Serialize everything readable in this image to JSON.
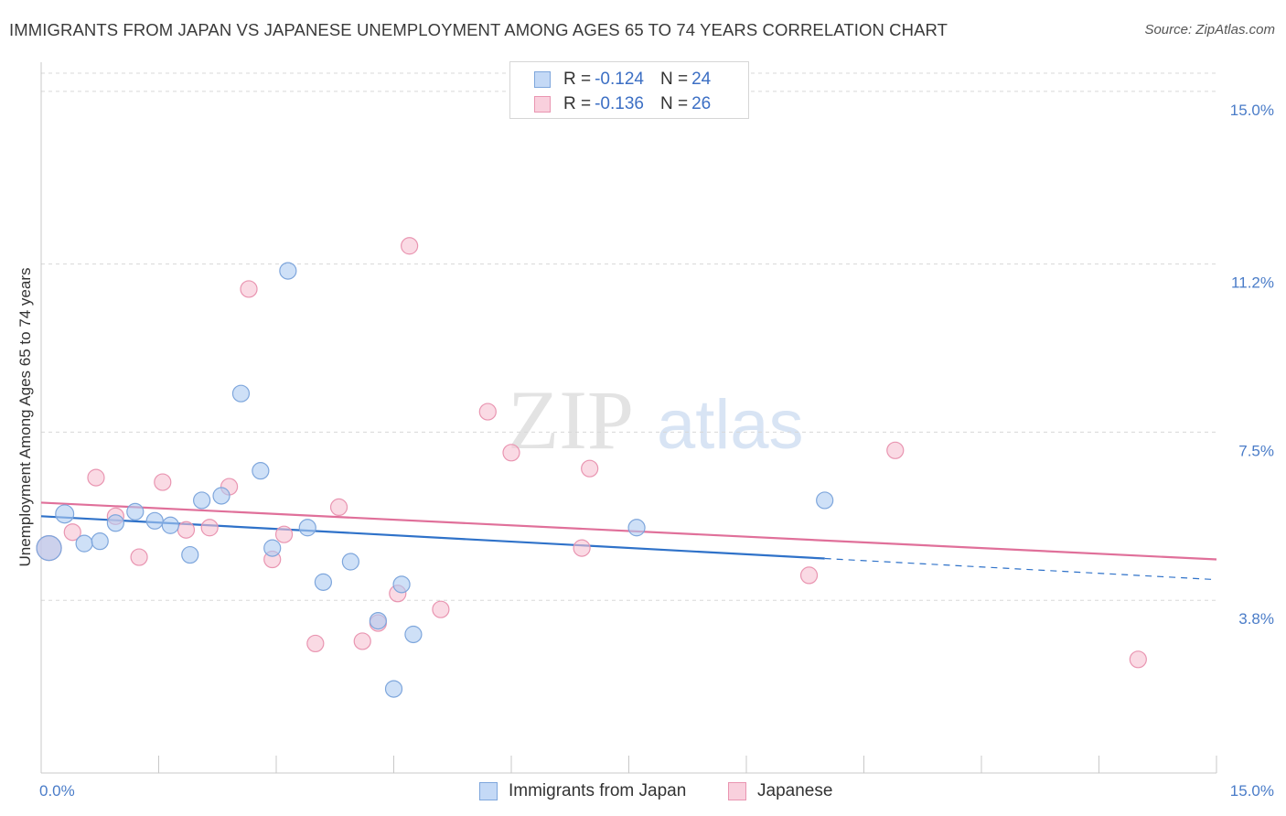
{
  "title": "IMMIGRANTS FROM JAPAN VS JAPANESE UNEMPLOYMENT AMONG AGES 65 TO 74 YEARS CORRELATION CHART",
  "source": "Source: ZipAtlas.com",
  "watermark": {
    "zip": "ZIP",
    "atlas": "atlas"
  },
  "colors": {
    "blue_fill": "#aecbf2",
    "blue_stroke": "#7ea6dc",
    "blue_line": "#2f72c9",
    "pink_fill": "#f7c1d2",
    "pink_stroke": "#e995b1",
    "pink_line": "#e0709a",
    "tick_text": "#4a7cc8",
    "grid": "#d8d8d8"
  },
  "legend": {
    "rows": [
      {
        "r_label": "R = ",
        "r_value": "-0.124",
        "n_label": "N = ",
        "n_value": "24"
      },
      {
        "r_label": "R = ",
        "r_value": "-0.136",
        "n_label": "N = ",
        "n_value": "26"
      }
    ]
  },
  "chart_data": {
    "type": "scatter",
    "title": "IMMIGRANTS FROM JAPAN VS JAPANESE UNEMPLOYMENT AMONG AGES 65 TO 74 YEARS CORRELATION CHART",
    "xlabel": "",
    "ylabel": "Unemployment Among Ages 65 to 74 years",
    "xlim": [
      0,
      15
    ],
    "ylim": [
      0,
      15.4
    ],
    "x_tick_labels": [
      {
        "value": 0,
        "label": "0.0%"
      },
      {
        "value": 15,
        "label": "15.0%"
      }
    ],
    "x_minor_ticks": [
      1.5,
      3.0,
      4.5,
      6.0,
      7.5,
      9.0,
      10.5,
      12.0,
      13.5,
      15.0
    ],
    "y_ticks": [
      {
        "value": 3.8,
        "label": "3.8%"
      },
      {
        "value": 7.5,
        "label": "7.5%"
      },
      {
        "value": 11.2,
        "label": "11.2%"
      },
      {
        "value": 15.0,
        "label": "15.0%"
      }
    ],
    "grid": true,
    "series": [
      {
        "name": "Immigrants from Japan",
        "color": "blue",
        "r": -0.124,
        "n": 24,
        "trend": {
          "x0": 0.0,
          "y0": 5.65,
          "x1": 10.0,
          "y1": 4.72,
          "dash_to": 15.0
        },
        "points": [
          {
            "x": 0.1,
            "y": 4.95,
            "s": 1.5
          },
          {
            "x": 0.3,
            "y": 5.7,
            "s": 1.1
          },
          {
            "x": 0.55,
            "y": 5.05,
            "s": 1.0
          },
          {
            "x": 0.75,
            "y": 5.1,
            "s": 1.0
          },
          {
            "x": 0.95,
            "y": 5.5,
            "s": 1.0
          },
          {
            "x": 1.2,
            "y": 5.75,
            "s": 1.0
          },
          {
            "x": 1.45,
            "y": 5.55,
            "s": 1.0
          },
          {
            "x": 1.65,
            "y": 5.45,
            "s": 1.0
          },
          {
            "x": 1.9,
            "y": 4.8,
            "s": 1.0
          },
          {
            "x": 2.05,
            "y": 6.0,
            "s": 1.0
          },
          {
            "x": 2.3,
            "y": 6.1,
            "s": 1.0
          },
          {
            "x": 2.55,
            "y": 8.35,
            "s": 1.0
          },
          {
            "x": 2.8,
            "y": 6.65,
            "s": 1.0
          },
          {
            "x": 2.95,
            "y": 4.95,
            "s": 1.0
          },
          {
            "x": 3.15,
            "y": 11.05,
            "s": 1.0
          },
          {
            "x": 3.4,
            "y": 5.4,
            "s": 1.0
          },
          {
            "x": 3.6,
            "y": 4.2,
            "s": 1.0
          },
          {
            "x": 3.95,
            "y": 4.65,
            "s": 1.0
          },
          {
            "x": 4.3,
            "y": 3.35,
            "s": 1.0
          },
          {
            "x": 4.5,
            "y": 1.85,
            "s": 1.0
          },
          {
            "x": 4.6,
            "y": 4.15,
            "s": 1.0
          },
          {
            "x": 4.75,
            "y": 3.05,
            "s": 1.0
          },
          {
            "x": 7.6,
            "y": 5.4,
            "s": 1.0
          },
          {
            "x": 10.0,
            "y": 6.0,
            "s": 1.0
          }
        ]
      },
      {
        "name": "Japanese",
        "color": "pink",
        "r": -0.136,
        "n": 26,
        "trend": {
          "x0": 0.0,
          "y0": 5.95,
          "x1": 15.0,
          "y1": 4.7,
          "dash_to": null
        },
        "points": [
          {
            "x": 0.1,
            "y": 4.95,
            "s": 1.5
          },
          {
            "x": 0.4,
            "y": 5.3,
            "s": 1.0
          },
          {
            "x": 0.7,
            "y": 6.5,
            "s": 1.0
          },
          {
            "x": 0.95,
            "y": 5.65,
            "s": 1.0
          },
          {
            "x": 1.25,
            "y": 4.75,
            "s": 1.0
          },
          {
            "x": 1.55,
            "y": 6.4,
            "s": 1.0
          },
          {
            "x": 1.85,
            "y": 5.35,
            "s": 1.0
          },
          {
            "x": 2.15,
            "y": 5.4,
            "s": 1.0
          },
          {
            "x": 2.4,
            "y": 6.3,
            "s": 1.0
          },
          {
            "x": 2.65,
            "y": 10.65,
            "s": 1.0
          },
          {
            "x": 2.95,
            "y": 4.7,
            "s": 1.0
          },
          {
            "x": 3.1,
            "y": 5.25,
            "s": 1.0
          },
          {
            "x": 3.5,
            "y": 2.85,
            "s": 1.0
          },
          {
            "x": 3.8,
            "y": 5.85,
            "s": 1.0
          },
          {
            "x": 4.1,
            "y": 2.9,
            "s": 1.0
          },
          {
            "x": 4.3,
            "y": 3.3,
            "s": 1.0
          },
          {
            "x": 4.55,
            "y": 3.95,
            "s": 1.0
          },
          {
            "x": 4.7,
            "y": 11.6,
            "s": 1.0
          },
          {
            "x": 5.1,
            "y": 3.6,
            "s": 1.0
          },
          {
            "x": 5.7,
            "y": 7.95,
            "s": 1.0
          },
          {
            "x": 6.0,
            "y": 7.05,
            "s": 1.0
          },
          {
            "x": 6.9,
            "y": 4.95,
            "s": 1.0
          },
          {
            "x": 7.0,
            "y": 6.7,
            "s": 1.0
          },
          {
            "x": 9.8,
            "y": 4.35,
            "s": 1.0
          },
          {
            "x": 10.9,
            "y": 7.1,
            "s": 1.0
          },
          {
            "x": 14.0,
            "y": 2.5,
            "s": 1.0
          }
        ]
      }
    ]
  }
}
